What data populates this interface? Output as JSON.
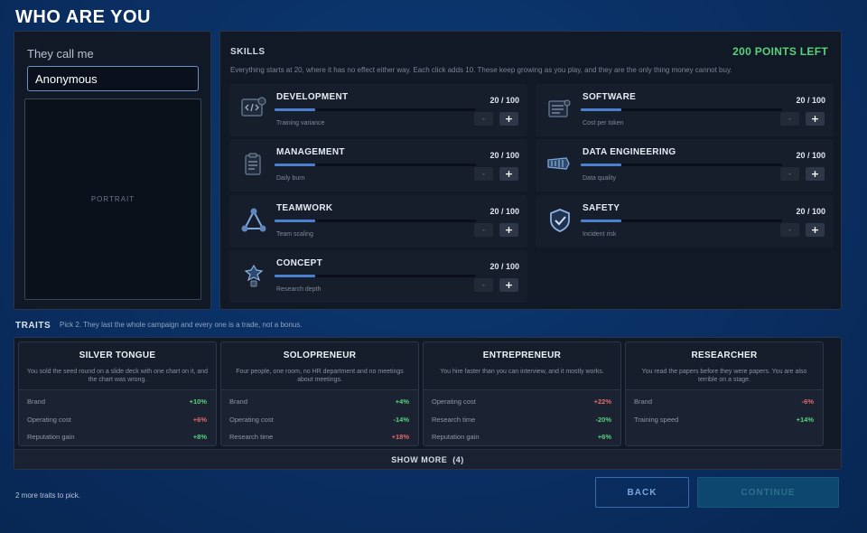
{
  "page": {
    "title": "WHO ARE YOU"
  },
  "profile": {
    "name_label": "They call me",
    "name_value": "Anonymous",
    "portrait_label": "PORTRAIT"
  },
  "skills": {
    "heading": "SKILLS",
    "points_left": "200 POINTS LEFT",
    "description": "Everything starts at 20, where it has no effect either way. Each click adds 10. These keep growing as you play, and they are the only thing money cannot buy.",
    "minus_label": "-",
    "plus_label": "+",
    "items": [
      {
        "name": "DEVELOPMENT",
        "effect": "Training variance",
        "value_text": "20 / 100",
        "level": 0.2,
        "icon": "code-monitor-icon"
      },
      {
        "name": "SOFTWARE",
        "effect": "Cost per token",
        "value_text": "20 / 100",
        "level": 0.2,
        "icon": "server-icon"
      },
      {
        "name": "MANAGEMENT",
        "effect": "Daily burn",
        "value_text": "20 / 100",
        "level": 0.2,
        "icon": "clipboard-icon"
      },
      {
        "name": "DATA ENGINEERING",
        "effect": "Data quality",
        "value_text": "20 / 100",
        "level": 0.2,
        "icon": "data-pipe-icon"
      },
      {
        "name": "TEAMWORK",
        "effect": "Team scaling",
        "value_text": "20 / 100",
        "level": 0.2,
        "icon": "team-nodes-icon"
      },
      {
        "name": "SAFETY",
        "effect": "Incident risk",
        "value_text": "20 / 100",
        "level": 0.2,
        "icon": "shield-check-icon"
      },
      {
        "name": "CONCEPT",
        "effect": "Research depth",
        "value_text": "20 / 100",
        "level": 0.2,
        "icon": "lightbulb-icon"
      }
    ]
  },
  "traits": {
    "heading": "TRAITS",
    "subheading": "Pick 2. They last the whole campaign and every one is a trade, not a bonus.",
    "items": [
      {
        "name": "SILVER TONGUE",
        "description": "You sold the seed round on a slide deck with one chart on it, and the chart was wrong.",
        "mods": [
          {
            "label": "Brand",
            "value": "+10%",
            "positive": true
          },
          {
            "label": "Operating cost",
            "value": "+6%",
            "positive": false
          },
          {
            "label": "Reputation gain",
            "value": "+8%",
            "positive": true
          }
        ]
      },
      {
        "name": "SOLOPRENEUR",
        "description": "Four people, one room, no HR department and no meetings about meetings.",
        "mods": [
          {
            "label": "Brand",
            "value": "+4%",
            "positive": true
          },
          {
            "label": "Operating cost",
            "value": "-14%",
            "positive": true
          },
          {
            "label": "Research time",
            "value": "+18%",
            "positive": false
          }
        ]
      },
      {
        "name": "ENTREPRENEUR",
        "description": "You hire faster than you can interview, and it mostly works.",
        "mods": [
          {
            "label": "Operating cost",
            "value": "+22%",
            "positive": false
          },
          {
            "label": "Research time",
            "value": "-20%",
            "positive": true
          },
          {
            "label": "Reputation gain",
            "value": "+6%",
            "positive": true
          }
        ]
      },
      {
        "name": "RESEARCHER",
        "description": "You read the papers before they were papers. You are also terrible on a stage.",
        "mods": [
          {
            "label": "Brand",
            "value": "-6%",
            "positive": false
          },
          {
            "label": "Training speed",
            "value": "+14%",
            "positive": true
          }
        ]
      }
    ],
    "show_more_label": "SHOW MORE",
    "show_more_count": "(4)",
    "picks_left": "2 more traits to pick."
  },
  "actions": {
    "back_label": "BACK",
    "continue_label": "CONTINUE"
  },
  "colors": {
    "accent": "#4b7fd0",
    "positive": "#58d37a",
    "negative": "#e06a6a",
    "background": "#0a2f63"
  }
}
